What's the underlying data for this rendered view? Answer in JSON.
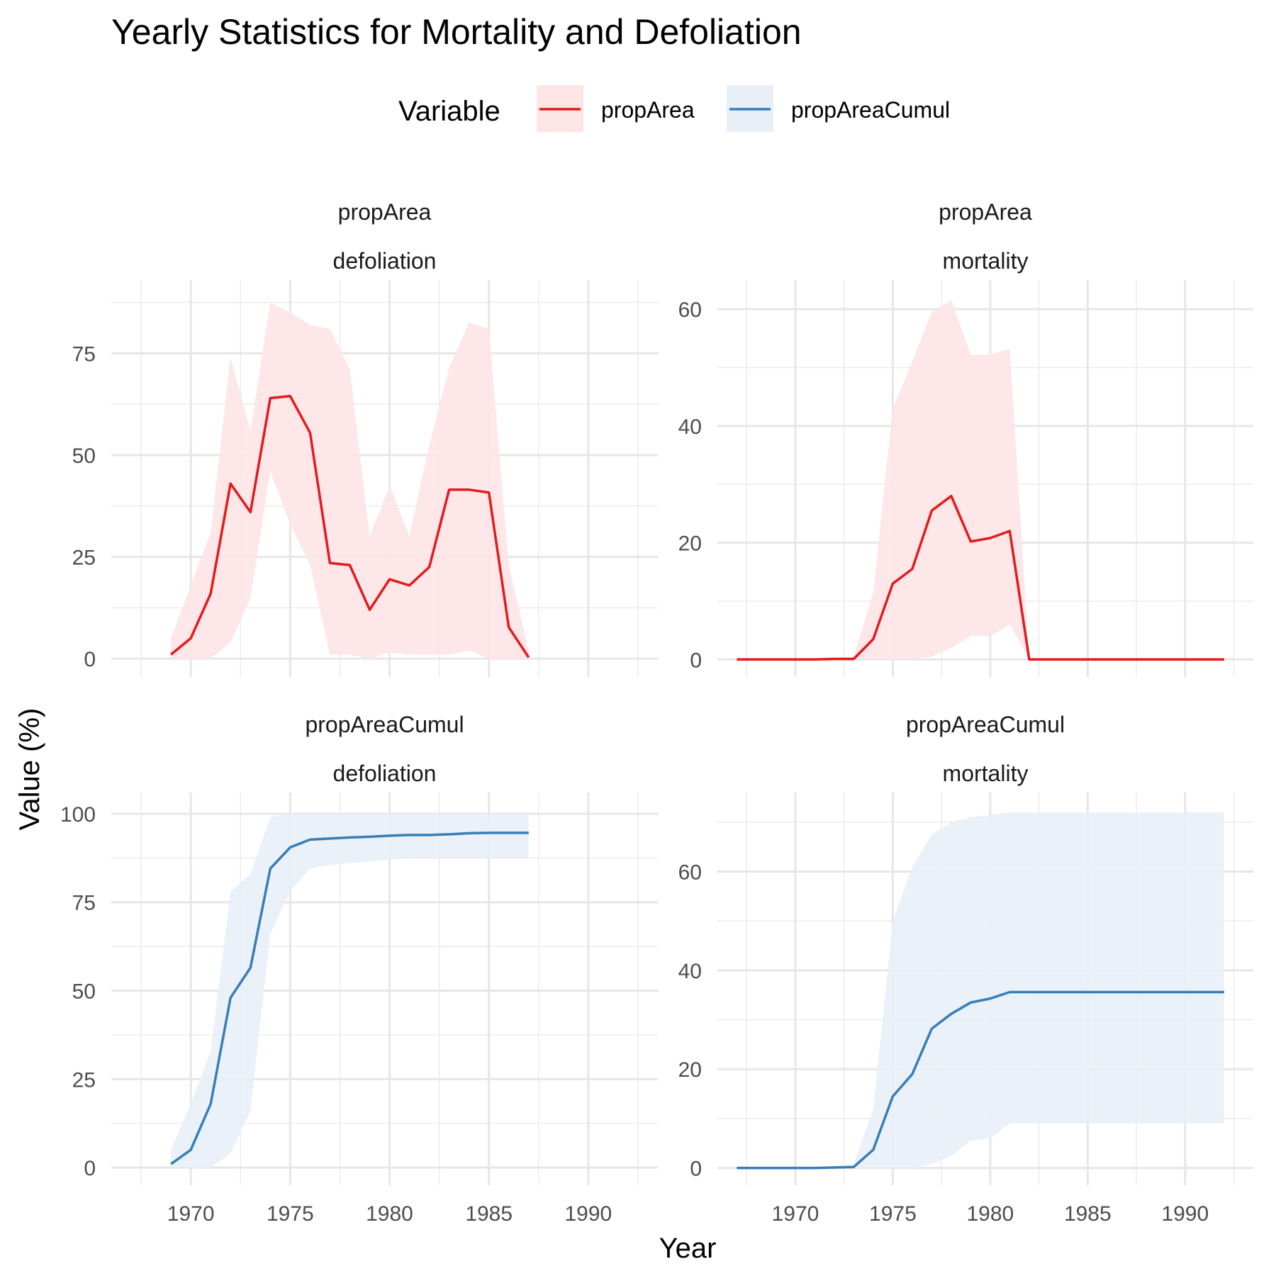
{
  "title": "Yearly Statistics for Mortality and Defoliation",
  "legend": {
    "title": "Variable",
    "position": "top",
    "items": [
      {
        "label": "propArea",
        "color": "#e41a1c",
        "fill": "#fde4e5"
      },
      {
        "label": "propAreaCumul",
        "color": "#377eb8",
        "fill": "#e8eff7"
      }
    ]
  },
  "xlabel": "Year",
  "ylabel": "Value (%)",
  "chart_data": [
    {
      "type": "area",
      "strip": [
        "propArea",
        "defoliation"
      ],
      "series_name": "propArea",
      "color": "#e41a1c",
      "band_color": "#fde4e5",
      "x_ticks": [
        1970,
        1975,
        1980,
        1985,
        1990
      ],
      "xlim": [
        1966,
        1993.5
      ],
      "y_ticks": [
        0,
        25,
        50,
        75
      ],
      "ylim": [
        -4.5,
        93
      ],
      "grid": true,
      "x": [
        1969,
        1970,
        1971,
        1972,
        1973,
        1974,
        1975,
        1976,
        1977,
        1978,
        1979,
        1980,
        1981,
        1982,
        1983,
        1984,
        1985,
        1986,
        1987
      ],
      "y": [
        1,
        5,
        16,
        43,
        36,
        64,
        64.5,
        55.5,
        23.5,
        23,
        12,
        19.5,
        18,
        22.5,
        41.5,
        41.5,
        40.8,
        7.7,
        0.3
      ],
      "lower": [
        0,
        0,
        0,
        4,
        15,
        46,
        33,
        23,
        1,
        1,
        0,
        1.5,
        1,
        1,
        1,
        2,
        0,
        0,
        0
      ],
      "upper": [
        5,
        18,
        31,
        74,
        56,
        87.5,
        85,
        82,
        81,
        71,
        30,
        42.5,
        30,
        52.5,
        71.5,
        82.5,
        81,
        23,
        2
      ]
    },
    {
      "type": "area",
      "strip": [
        "propArea",
        "mortality"
      ],
      "series_name": "propArea",
      "color": "#e41a1c",
      "band_color": "#fde4e5",
      "x_ticks": [
        1970,
        1975,
        1980,
        1985,
        1990
      ],
      "xlim": [
        1966,
        1993.5
      ],
      "y_ticks": [
        0,
        20,
        40,
        60
      ],
      "ylim": [
        -3,
        65
      ],
      "grid": true,
      "x": [
        1967,
        1968,
        1969,
        1970,
        1971,
        1972,
        1973,
        1974,
        1975,
        1976,
        1977,
        1978,
        1979,
        1980,
        1981,
        1982,
        1983,
        1984,
        1985,
        1986,
        1987,
        1988,
        1989,
        1990,
        1991,
        1992
      ],
      "y": [
        0,
        0,
        0,
        0,
        0,
        0.1,
        0.1,
        3.5,
        13,
        15.5,
        25.5,
        28,
        20.2,
        20.8,
        22,
        0,
        0,
        0,
        0,
        0,
        0,
        0,
        0,
        0,
        0,
        0
      ],
      "lower": [
        0,
        0,
        0,
        0,
        0,
        0,
        0,
        0,
        0,
        0,
        0.5,
        2,
        4,
        4,
        6,
        0,
        0,
        0,
        0,
        0,
        0,
        0,
        0,
        0,
        0,
        0
      ],
      "upper": [
        0,
        0,
        0,
        0,
        0,
        0.3,
        0.5,
        11.5,
        43,
        51,
        59.5,
        61.5,
        52.2,
        52.2,
        53.2,
        0,
        0,
        0,
        0,
        0,
        0,
        0,
        0,
        0,
        0,
        0
      ]
    },
    {
      "type": "area",
      "strip": [
        "propAreaCumul",
        "defoliation"
      ],
      "series_name": "propAreaCumul",
      "color": "#377eb8",
      "band_color": "#e8eff7",
      "x_ticks": [
        1970,
        1975,
        1980,
        1985,
        1990
      ],
      "xlim": [
        1966,
        1993.5
      ],
      "y_ticks": [
        0,
        25,
        50,
        75,
        100
      ],
      "ylim": [
        -5,
        106
      ],
      "grid": true,
      "x": [
        1969,
        1970,
        1971,
        1972,
        1973,
        1974,
        1975,
        1976,
        1977,
        1978,
        1979,
        1980,
        1981,
        1982,
        1983,
        1984,
        1985,
        1986,
        1987
      ],
      "y": [
        1,
        5,
        18,
        48,
        56.5,
        84.5,
        90.5,
        92.7,
        93,
        93.3,
        93.5,
        93.8,
        94,
        94,
        94.2,
        94.5,
        94.6,
        94.6,
        94.6
      ],
      "lower": [
        0,
        0,
        0,
        4,
        16,
        66,
        78,
        84.5,
        85.5,
        86,
        86.5,
        87,
        87.5,
        87.5,
        87.5,
        87.5,
        87.5,
        87.5,
        87.5
      ],
      "upper": [
        5,
        18,
        33,
        78,
        83,
        99,
        100,
        100,
        100,
        100,
        100,
        100,
        100,
        100,
        100,
        100,
        100,
        100,
        100
      ]
    },
    {
      "type": "area",
      "strip": [
        "propAreaCumul",
        "mortality"
      ],
      "series_name": "propAreaCumul",
      "color": "#377eb8",
      "band_color": "#e8eff7",
      "x_ticks": [
        1970,
        1975,
        1980,
        1985,
        1990
      ],
      "xlim": [
        1966,
        1993.5
      ],
      "y_ticks": [
        0,
        20,
        40,
        60
      ],
      "ylim": [
        -3.5,
        76
      ],
      "grid": true,
      "x": [
        1967,
        1968,
        1969,
        1970,
        1971,
        1972,
        1973,
        1974,
        1975,
        1976,
        1977,
        1978,
        1979,
        1980,
        1981,
        1982,
        1983,
        1984,
        1985,
        1986,
        1987,
        1988,
        1989,
        1990,
        1991,
        1992
      ],
      "y": [
        0,
        0,
        0,
        0,
        0,
        0.1,
        0.2,
        3.7,
        14.5,
        19,
        28.2,
        31.2,
        33.5,
        34.3,
        35.6,
        35.6,
        35.6,
        35.6,
        35.6,
        35.6,
        35.6,
        35.6,
        35.6,
        35.6,
        35.6,
        35.6
      ],
      "lower": [
        0,
        0,
        0,
        0,
        0,
        0,
        0,
        0,
        0,
        0,
        0.8,
        2.5,
        5.5,
        6,
        9,
        9,
        9,
        9,
        9,
        9,
        9,
        9,
        9,
        9,
        9,
        9
      ],
      "upper": [
        0,
        0,
        0,
        0,
        0,
        0.3,
        0.8,
        12,
        50,
        61,
        67.5,
        70,
        71,
        71.5,
        72,
        72,
        72,
        72,
        72,
        72,
        72,
        72,
        72,
        72,
        72,
        72
      ]
    }
  ]
}
